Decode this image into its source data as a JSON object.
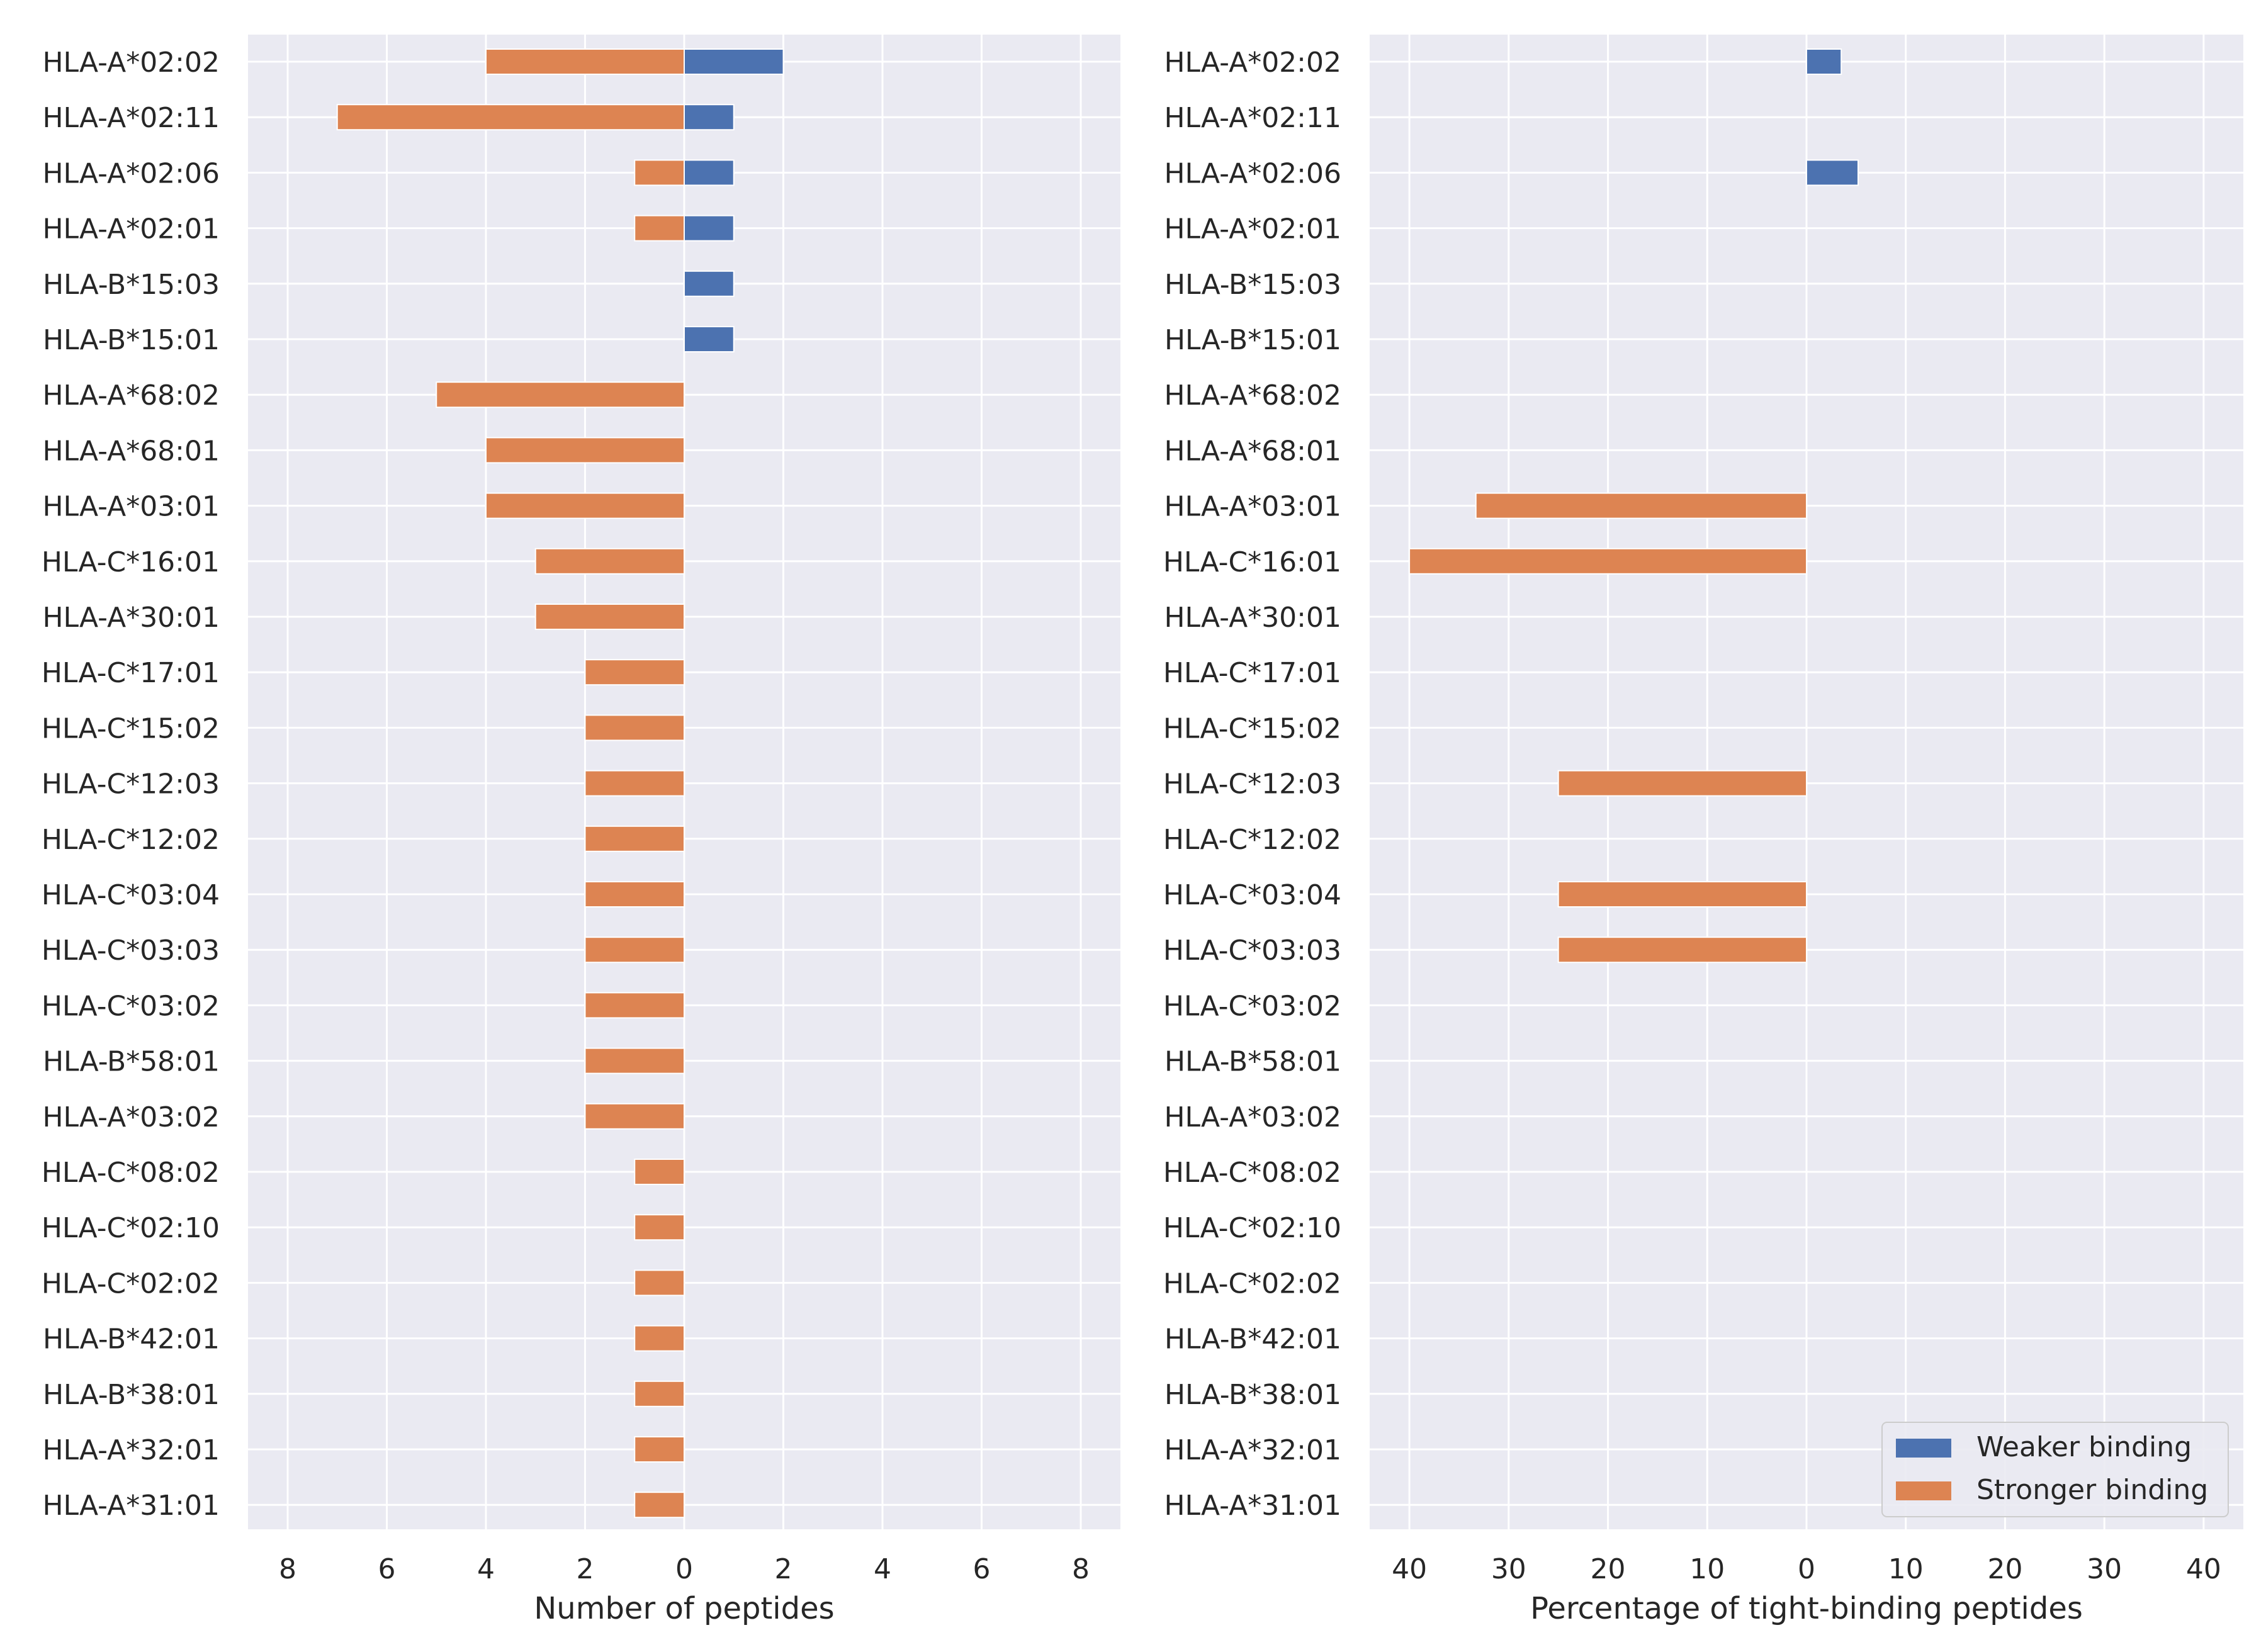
{
  "chart_data": [
    {
      "type": "bar",
      "orientation": "horizontal",
      "categories": [
        "HLA-A*02:02",
        "HLA-A*02:11",
        "HLA-A*02:06",
        "HLA-A*02:01",
        "HLA-B*15:03",
        "HLA-B*15:01",
        "HLA-A*68:02",
        "HLA-A*68:01",
        "HLA-A*03:01",
        "HLA-C*16:01",
        "HLA-A*30:01",
        "HLA-C*17:01",
        "HLA-C*15:02",
        "HLA-C*12:03",
        "HLA-C*12:02",
        "HLA-C*03:04",
        "HLA-C*03:03",
        "HLA-C*03:02",
        "HLA-B*58:01",
        "HLA-A*03:02",
        "HLA-C*08:02",
        "HLA-C*02:10",
        "HLA-C*02:02",
        "HLA-B*42:01",
        "HLA-B*38:01",
        "HLA-A*32:01",
        "HLA-A*31:01"
      ],
      "series": [
        {
          "name": "Weaker binding",
          "color": "#4c72b0",
          "direction": "right",
          "values": [
            2,
            1,
            1,
            1,
            1,
            1,
            0,
            0,
            0,
            0,
            0,
            0,
            0,
            0,
            0,
            0,
            0,
            0,
            0,
            0,
            0,
            0,
            0,
            0,
            0,
            0,
            0
          ]
        },
        {
          "name": "Stronger binding",
          "color": "#dd8452",
          "direction": "left",
          "values": [
            4,
            7,
            1,
            1,
            0,
            0,
            5,
            4,
            4,
            3,
            3,
            2,
            2,
            2,
            2,
            2,
            2,
            2,
            2,
            2,
            1,
            1,
            1,
            1,
            1,
            1,
            1
          ]
        }
      ],
      "xlabel": "Number of peptides",
      "xlim": [
        -8.8,
        8.8
      ],
      "xticks": [
        -8,
        -6,
        -4,
        -2,
        0,
        2,
        4,
        6,
        8
      ],
      "xticklabels": [
        "8",
        "6",
        "4",
        "2",
        "0",
        "2",
        "4",
        "6",
        "8"
      ],
      "grid": true
    },
    {
      "type": "bar",
      "orientation": "horizontal",
      "categories": [
        "HLA-A*02:02",
        "HLA-A*02:11",
        "HLA-A*02:06",
        "HLA-A*02:01",
        "HLA-B*15:03",
        "HLA-B*15:01",
        "HLA-A*68:02",
        "HLA-A*68:01",
        "HLA-A*03:01",
        "HLA-C*16:01",
        "HLA-A*30:01",
        "HLA-C*17:01",
        "HLA-C*15:02",
        "HLA-C*12:03",
        "HLA-C*12:02",
        "HLA-C*03:04",
        "HLA-C*03:03",
        "HLA-C*03:02",
        "HLA-B*58:01",
        "HLA-A*03:02",
        "HLA-C*08:02",
        "HLA-C*02:10",
        "HLA-C*02:02",
        "HLA-B*42:01",
        "HLA-B*38:01",
        "HLA-A*32:01",
        "HLA-A*31:01"
      ],
      "series": [
        {
          "name": "Weaker binding",
          "color": "#4c72b0",
          "direction": "right",
          "values": [
            3.5,
            0,
            5.2,
            0,
            0,
            0,
            0,
            0,
            0,
            0,
            0,
            0,
            0,
            0,
            0,
            0,
            0,
            0,
            0,
            0,
            0,
            0,
            0,
            0,
            0,
            0,
            0
          ]
        },
        {
          "name": "Stronger binding",
          "color": "#dd8452",
          "direction": "left",
          "values": [
            0,
            0,
            0,
            0,
            0,
            0,
            0,
            0,
            33.3,
            40,
            0,
            0,
            0,
            25,
            0,
            25,
            25,
            0,
            0,
            0,
            0,
            0,
            0,
            0,
            0,
            0,
            0
          ]
        }
      ],
      "xlabel": "Percentage of tight-binding peptides",
      "xlim": [
        -44,
        44
      ],
      "xticks": [
        -40,
        -30,
        -20,
        -10,
        0,
        10,
        20,
        30,
        40
      ],
      "xticklabels": [
        "40",
        "30",
        "20",
        "10",
        "0",
        "10",
        "20",
        "30",
        "40"
      ],
      "grid": true,
      "legend": {
        "placement": "lower-right",
        "entries": [
          {
            "label": "Weaker binding",
            "color": "#4c72b0"
          },
          {
            "label": "Stronger binding",
            "color": "#dd8452"
          }
        ]
      }
    }
  ],
  "style": {
    "plot_background": "#eaeaf2",
    "grid_color": "#ffffff",
    "text_color": "#262626"
  }
}
